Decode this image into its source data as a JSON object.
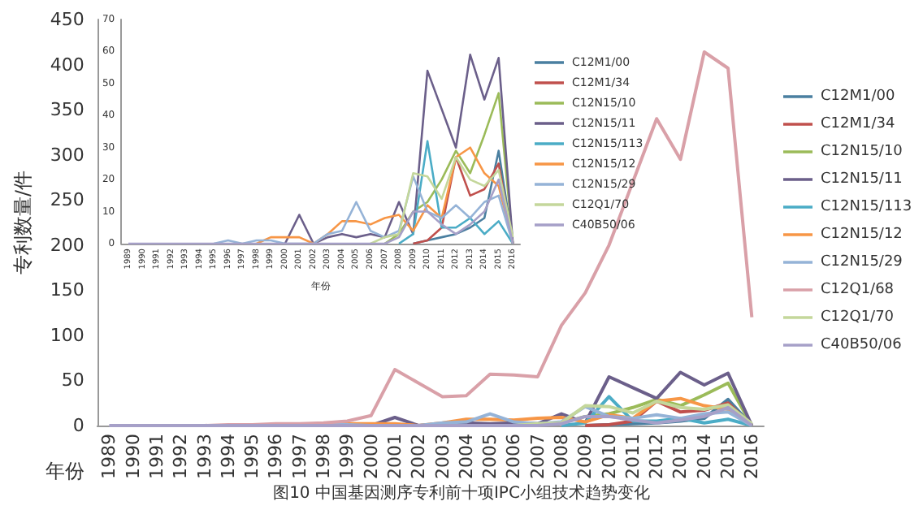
{
  "chart_data": [
    {
      "type": "line",
      "title": "图10 中国基因测序专利前十项IPC小组技术趋势变化",
      "xlabel": "年份",
      "ylabel": "专利数量/件",
      "categories": [
        "1989",
        "1990",
        "1991",
        "1992",
        "1993",
        "1994",
        "1995",
        "1996",
        "1997",
        "1998",
        "1999",
        "2000",
        "2001",
        "2002",
        "2003",
        "2004",
        "2005",
        "2006",
        "2007",
        "2008",
        "2009",
        "2010",
        "2011",
        "2012",
        "2013",
        "2014",
        "2015",
        "2016"
      ],
      "ylim": [
        0,
        450
      ],
      "yticks": [
        0,
        50,
        100,
        150,
        200,
        250,
        300,
        350,
        400,
        450
      ],
      "grid": false,
      "legend": "right",
      "series": [
        {
          "name": "C12M1/00",
          "color": "#4a7fa0",
          "values": [
            null,
            null,
            null,
            null,
            null,
            null,
            null,
            null,
            null,
            null,
            null,
            null,
            null,
            null,
            null,
            null,
            null,
            null,
            null,
            null,
            0,
            1,
            2,
            3,
            5,
            8,
            29,
            0
          ]
        },
        {
          "name": "C12M1/34",
          "color": "#c0504d",
          "values": [
            null,
            null,
            null,
            null,
            null,
            null,
            null,
            null,
            null,
            null,
            null,
            null,
            null,
            null,
            null,
            null,
            null,
            null,
            null,
            null,
            0,
            1,
            5,
            27,
            15,
            17,
            25,
            0
          ]
        },
        {
          "name": "C12N15/10",
          "color": "#9bbb59",
          "values": [
            null,
            null,
            null,
            null,
            null,
            null,
            null,
            null,
            null,
            null,
            null,
            null,
            null,
            null,
            null,
            null,
            null,
            null,
            0,
            3,
            10,
            13,
            20,
            29,
            22,
            34,
            47,
            0
          ]
        },
        {
          "name": "C12N15/11",
          "color": "#6b5f8a",
          "values": [
            null,
            null,
            null,
            null,
            null,
            null,
            null,
            null,
            null,
            null,
            null,
            0,
            9,
            0,
            2,
            3,
            2,
            3,
            2,
            13,
            3,
            54,
            42,
            30,
            59,
            45,
            58,
            0
          ]
        },
        {
          "name": "C12N15/113",
          "color": "#4bacc6",
          "values": [
            null,
            null,
            null,
            null,
            null,
            null,
            null,
            null,
            null,
            null,
            null,
            null,
            null,
            null,
            null,
            null,
            null,
            null,
            null,
            0,
            3,
            32,
            5,
            5,
            8,
            3,
            7,
            0
          ]
        },
        {
          "name": "C12N15/12",
          "color": "#f79646",
          "values": [
            null,
            null,
            null,
            null,
            null,
            null,
            null,
            null,
            null,
            0,
            2,
            2,
            2,
            0,
            3,
            7,
            7,
            6,
            8,
            9,
            4,
            12,
            8,
            27,
            30,
            22,
            18,
            0
          ]
        },
        {
          "name": "C12N15/29",
          "color": "#95b3d7",
          "values": [
            null,
            null,
            null,
            null,
            null,
            null,
            0,
            1,
            0,
            1,
            1,
            0,
            0,
            0,
            3,
            4,
            13,
            4,
            2,
            4,
            21,
            10,
            8,
            12,
            8,
            13,
            15,
            0
          ]
        },
        {
          "name": "C12Q1/68",
          "color": "#d9a0a8",
          "values": [
            null,
            null,
            null,
            null,
            0,
            1,
            1,
            2,
            2,
            3,
            5,
            11,
            62,
            47,
            32,
            33,
            57,
            56,
            54,
            111,
            147,
            200,
            270,
            340,
            295,
            414,
            396,
            120
          ]
        },
        {
          "name": "C12Q1/70",
          "color": "#c4d79b",
          "values": [
            null,
            null,
            null,
            null,
            null,
            null,
            null,
            null,
            null,
            null,
            null,
            null,
            null,
            null,
            null,
            null,
            null,
            0,
            2,
            3,
            22,
            21,
            14,
            27,
            20,
            18,
            23,
            2
          ]
        },
        {
          "name": "C40B50/06",
          "color": "#a6a0c8",
          "values": [
            0,
            0,
            0,
            0,
            0,
            0,
            0,
            0,
            0,
            0,
            0,
            0,
            0,
            0,
            0,
            0,
            0,
            0,
            0,
            2,
            10,
            10,
            6,
            3,
            6,
            10,
            20,
            0
          ]
        }
      ]
    },
    {
      "type": "line",
      "xlabel": "年份",
      "categories": [
        "1989",
        "1990",
        "1991",
        "1992",
        "1993",
        "1994",
        "1995",
        "1996",
        "1997",
        "1998",
        "1999",
        "2000",
        "2001",
        "2002",
        "2003",
        "2004",
        "2005",
        "2006",
        "2007",
        "2008",
        "2009",
        "2010",
        "2011",
        "2012",
        "2013",
        "2014",
        "2015",
        "2016"
      ],
      "ylim": [
        0,
        70
      ],
      "yticks": [
        0,
        10,
        20,
        30,
        40,
        50,
        60,
        70
      ],
      "grid": false,
      "legend": "right",
      "series": [
        {
          "name": "C12M1/00",
          "color": "#4a7fa0",
          "values": [
            null,
            null,
            null,
            null,
            null,
            null,
            null,
            null,
            null,
            null,
            null,
            null,
            null,
            null,
            null,
            null,
            null,
            null,
            null,
            null,
            0,
            1,
            2,
            3,
            5,
            8,
            29,
            0
          ]
        },
        {
          "name": "C12M1/34",
          "color": "#c0504d",
          "values": [
            null,
            null,
            null,
            null,
            null,
            null,
            null,
            null,
            null,
            null,
            null,
            null,
            null,
            null,
            null,
            null,
            null,
            null,
            null,
            null,
            0,
            1,
            5,
            27,
            15,
            17,
            25,
            0
          ]
        },
        {
          "name": "C12N15/10",
          "color": "#9bbb59",
          "values": [
            null,
            null,
            null,
            null,
            null,
            null,
            null,
            null,
            null,
            null,
            null,
            null,
            null,
            null,
            null,
            null,
            null,
            null,
            0,
            3,
            10,
            13,
            20,
            29,
            22,
            34,
            47,
            0
          ]
        },
        {
          "name": "C12N15/11",
          "color": "#6b5f8a",
          "values": [
            null,
            null,
            null,
            null,
            null,
            null,
            null,
            null,
            null,
            null,
            null,
            0,
            9,
            0,
            2,
            3,
            2,
            3,
            2,
            13,
            3,
            54,
            42,
            30,
            59,
            45,
            58,
            0
          ]
        },
        {
          "name": "C12N15/113",
          "color": "#4bacc6",
          "values": [
            null,
            null,
            null,
            null,
            null,
            null,
            null,
            null,
            null,
            null,
            null,
            null,
            null,
            null,
            null,
            null,
            null,
            null,
            null,
            0,
            3,
            32,
            5,
            5,
            8,
            3,
            7,
            0
          ]
        },
        {
          "name": "C12N15/12",
          "color": "#f79646",
          "values": [
            null,
            null,
            null,
            null,
            null,
            null,
            null,
            null,
            null,
            0,
            2,
            2,
            2,
            0,
            3,
            7,
            7,
            6,
            8,
            9,
            4,
            12,
            8,
            27,
            30,
            22,
            18,
            0
          ]
        },
        {
          "name": "C12N15/29",
          "color": "#95b3d7",
          "values": [
            null,
            null,
            null,
            null,
            null,
            null,
            0,
            1,
            0,
            1,
            1,
            0,
            0,
            0,
            3,
            4,
            13,
            4,
            2,
            4,
            21,
            10,
            8,
            12,
            8,
            13,
            15,
            0
          ]
        },
        {
          "name": "C12Q1/70",
          "color": "#c4d79b",
          "values": [
            null,
            null,
            null,
            null,
            null,
            null,
            null,
            null,
            null,
            null,
            null,
            null,
            null,
            null,
            null,
            null,
            null,
            0,
            2,
            3,
            22,
            21,
            14,
            27,
            20,
            18,
            23,
            2
          ]
        },
        {
          "name": "C40B50/06",
          "color": "#a6a0c8",
          "values": [
            0,
            0,
            0,
            0,
            0,
            0,
            0,
            0,
            0,
            0,
            0,
            0,
            0,
            0,
            0,
            0,
            0,
            0,
            0,
            2,
            10,
            10,
            6,
            3,
            6,
            10,
            20,
            0
          ]
        }
      ]
    }
  ]
}
